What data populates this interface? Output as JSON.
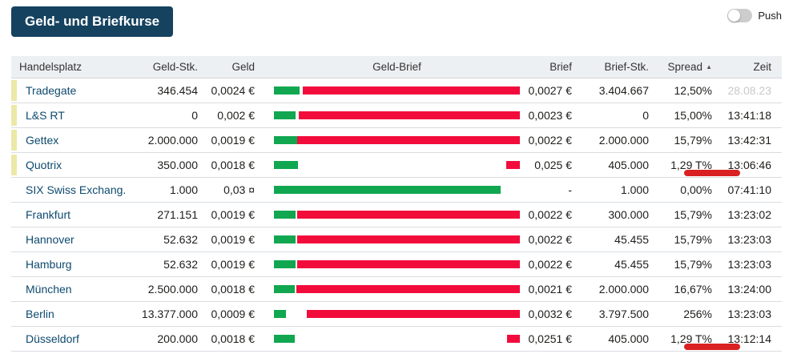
{
  "title": "Geld- und Briefkurse",
  "push": {
    "label": "Push",
    "state": "off"
  },
  "colors": {
    "badge_navy": "#15425f",
    "bid_green": "#10a750",
    "ask_red": "#f20c3c",
    "annotation_red": "#da2121",
    "row_marker_yellow": "#ece9a8",
    "venue_name_blue": "#0d4a6f",
    "muted_time_gray": "#c9c9c9"
  },
  "table": {
    "columns": [
      {
        "label": "Handelsplatz"
      },
      {
        "label": "Geld-Stk."
      },
      {
        "label": "Geld"
      },
      {
        "label": "Geld-Brief"
      },
      {
        "label": "Brief"
      },
      {
        "label": "Brief-Stk."
      },
      {
        "label": "Spread",
        "sorted": "asc"
      },
      {
        "label": "Zeit"
      }
    ],
    "rows": [
      {
        "name": "Tradegate",
        "marker": true,
        "geld_stk": "346.454",
        "geld": "0,0024 €",
        "bid_bar_pct": 10.4,
        "ask_bar_pct": 88.3,
        "brief": "0,0027 €",
        "brief_stk": "3.404.667",
        "spread": "12,50%",
        "zeit": "28.08.23",
        "zeit_muted": true,
        "annotated": false
      },
      {
        "name": "L&S RT",
        "marker": true,
        "geld_stk": "0",
        "geld": "0,002 €",
        "bid_bar_pct": 8.8,
        "ask_bar_pct": 89.9,
        "brief": "0,0023 €",
        "brief_stk": "0",
        "spread": "15,00%",
        "zeit": "13:41:18",
        "zeit_muted": false,
        "annotated": false
      },
      {
        "name": "Gettex",
        "marker": true,
        "geld_stk": "2.000.000",
        "geld": "0,0019 €",
        "bid_bar_pct": 9.4,
        "ask_bar_pct": 90.5,
        "brief": "0,0022 €",
        "brief_stk": "2.000.000",
        "spread": "15,79%",
        "zeit": "13:42:31",
        "zeit_muted": false,
        "annotated": false
      },
      {
        "name": "Quotrix",
        "marker": true,
        "geld_stk": "350.000",
        "geld": "0,0018 €",
        "bid_bar_pct": 9.8,
        "ask_bar_pct": 5.5,
        "brief": "0,025 €",
        "brief_stk": "405.000",
        "spread": "1,29 T%",
        "zeit": "13:06:46",
        "zeit_muted": false,
        "annotated": true
      },
      {
        "name": "SIX Swiss Exchang.",
        "marker": false,
        "geld_stk": "1.000",
        "geld": "0,03 ¤",
        "bid_bar_pct": 92.2,
        "ask_bar_pct": 0,
        "brief": "-",
        "brief_stk": "1.000",
        "spread": "0,00%",
        "zeit": "07:41:10",
        "zeit_muted": false,
        "annotated": false
      },
      {
        "name": "Frankfurt",
        "marker": false,
        "geld_stk": "271.151",
        "geld": "0,0019 €",
        "bid_bar_pct": 8.8,
        "ask_bar_pct": 90.5,
        "brief": "0,0022 €",
        "brief_stk": "300.000",
        "spread": "15,79%",
        "zeit": "13:23:02",
        "zeit_muted": false,
        "annotated": false
      },
      {
        "name": "Hannover",
        "marker": false,
        "geld_stk": "52.632",
        "geld": "0,0019 €",
        "bid_bar_pct": 8.8,
        "ask_bar_pct": 90.5,
        "brief": "0,0022 €",
        "brief_stk": "45.455",
        "spread": "15,79%",
        "zeit": "13:23:03",
        "zeit_muted": false,
        "annotated": false
      },
      {
        "name": "Hamburg",
        "marker": false,
        "geld_stk": "52.632",
        "geld": "0,0019 €",
        "bid_bar_pct": 8.8,
        "ask_bar_pct": 90.5,
        "brief": "0,0022 €",
        "brief_stk": "45.455",
        "spread": "15,79%",
        "zeit": "13:23:03",
        "zeit_muted": false,
        "annotated": false
      },
      {
        "name": "München",
        "marker": false,
        "geld_stk": "2.500.000",
        "geld": "0,0018 €",
        "bid_bar_pct": 8.5,
        "ask_bar_pct": 90.9,
        "brief": "0,0021 €",
        "brief_stk": "2.000.000",
        "spread": "16,67%",
        "zeit": "13:24:00",
        "zeit_muted": false,
        "annotated": false
      },
      {
        "name": "Berlin",
        "marker": false,
        "geld_stk": "13.377.000",
        "geld": "0,0009 €",
        "bid_bar_pct": 4.9,
        "ask_bar_pct": 86.6,
        "brief": "0,0032 €",
        "brief_stk": "3.797.500",
        "spread": "256%",
        "zeit": "13:23:03",
        "zeit_muted": false,
        "annotated": false
      },
      {
        "name": "Düsseldorf",
        "marker": false,
        "geld_stk": "200.000",
        "geld": "0,0018 €",
        "bid_bar_pct": 8.5,
        "ask_bar_pct": 5.2,
        "brief": "0,0251 €",
        "brief_stk": "405.000",
        "spread": "1,29 T%",
        "zeit": "13:12:14",
        "zeit_muted": false,
        "annotated": true
      }
    ]
  }
}
